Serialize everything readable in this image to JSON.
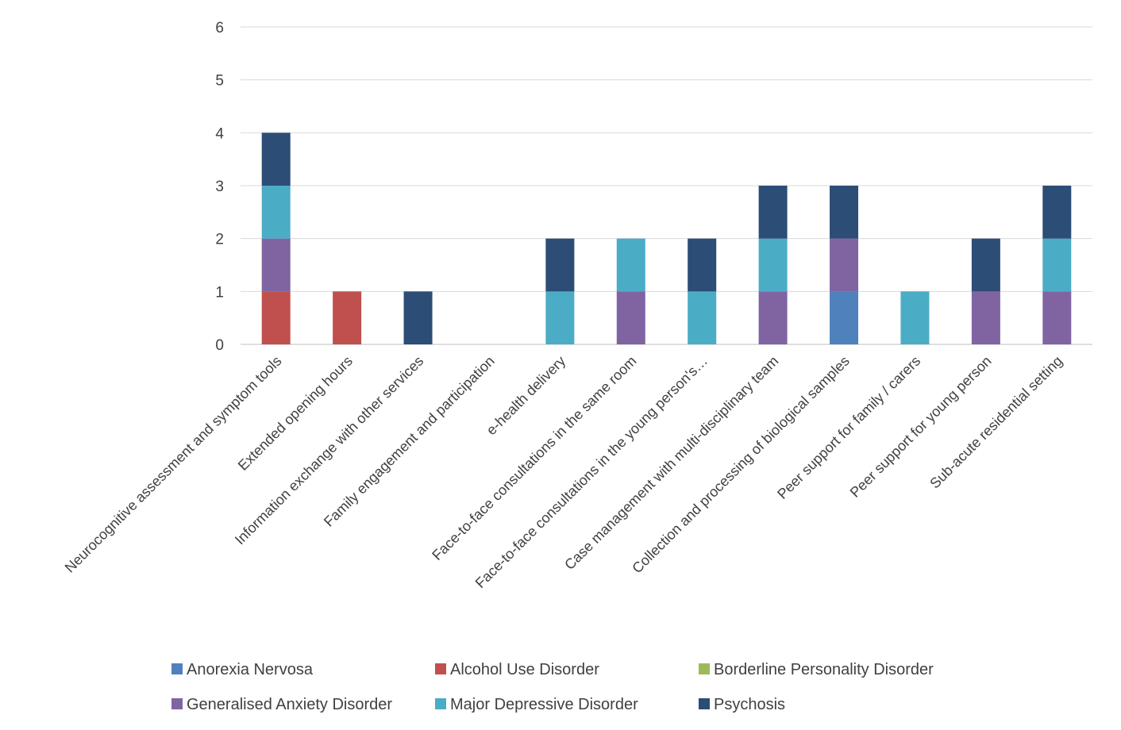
{
  "title": "",
  "chart_data": {
    "type": "bar",
    "stacked": true,
    "title": "",
    "xlabel": "",
    "ylabel": "",
    "ylim": [
      0,
      6
    ],
    "yticks": [
      0,
      1,
      2,
      3,
      4,
      5,
      6
    ],
    "grid": true,
    "legend_position": "bottom",
    "categories": [
      "Neurocognitive assessment and symptom tools",
      "Extended opening hours",
      "Information exchange with other services",
      "Family engagement and participation",
      "e-health delivery",
      "Face-to-face consultations in the same room",
      "Face-to-face consultations in the young person's…",
      "Case management with multi-disciplinary team",
      "Collection and processing of biological samples",
      "Peer support for family / carers",
      "Peer support for young person",
      "Sub-acute residential setting"
    ],
    "series": [
      {
        "name": "Anorexia Nervosa",
        "color": "#4f81bd",
        "values": [
          0,
          0,
          0,
          0,
          0,
          0,
          0,
          0,
          1,
          0,
          0,
          0
        ]
      },
      {
        "name": "Alcohol Use Disorder",
        "color": "#c0504d",
        "values": [
          1,
          1,
          0,
          0,
          0,
          0,
          0,
          0,
          0,
          0,
          0,
          0
        ]
      },
      {
        "name": "Borderline Personality Disorder",
        "color": "#9bbb59",
        "values": [
          0,
          0,
          0,
          0,
          0,
          0,
          0,
          0,
          0,
          0,
          0,
          0
        ]
      },
      {
        "name": "Generalised Anxiety Disorder",
        "color": "#8064a2",
        "values": [
          1,
          0,
          0,
          0,
          0,
          1,
          0,
          1,
          1,
          0,
          1,
          1
        ]
      },
      {
        "name": "Major Depressive Disorder",
        "color": "#4bacc6",
        "values": [
          1,
          0,
          0,
          0,
          1,
          1,
          1,
          1,
          0,
          1,
          0,
          1
        ]
      },
      {
        "name": "Psychosis",
        "color": "#2c4d75",
        "values": [
          1,
          0,
          1,
          0,
          1,
          0,
          1,
          1,
          1,
          0,
          1,
          1
        ]
      }
    ]
  }
}
